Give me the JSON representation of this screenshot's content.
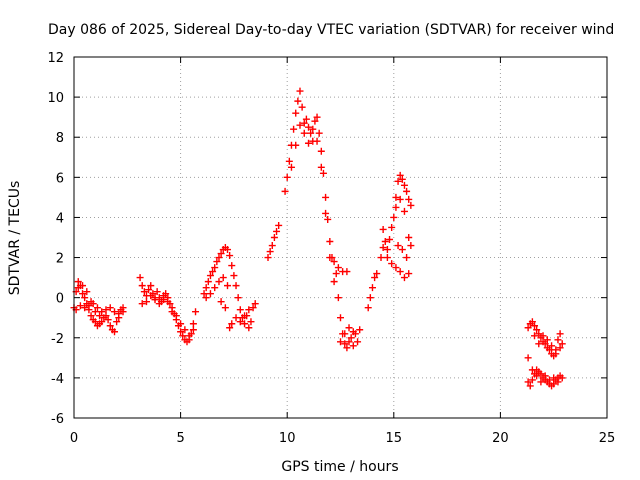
{
  "chart_data": {
    "type": "scatter",
    "title": "Day 086 of 2025, Sidereal Day-to-day VTEC variation (SDTVAR) for receiver wind",
    "xlabel": "GPS time / hours",
    "ylabel": "SDTVAR / TECUs",
    "xlim": [
      0,
      25
    ],
    "ylim": [
      -6,
      12
    ],
    "x_ticks": [
      "0",
      "5",
      "10",
      "15",
      "20",
      "25"
    ],
    "y_ticks": [
      "-6",
      "-4",
      "-2",
      "0",
      "2",
      "4",
      "6",
      "8",
      "10",
      "12"
    ],
    "grid": true,
    "marker": "plus",
    "color": "#ff0000",
    "series": [
      {
        "name": "SDTVAR",
        "points": [
          [
            0.0,
            -0.5
          ],
          [
            0.1,
            0.3
          ],
          [
            0.2,
            0.8
          ],
          [
            0.3,
            0.6
          ],
          [
            0.4,
            0.2
          ],
          [
            0.5,
            0.0
          ],
          [
            0.6,
            -0.3
          ],
          [
            0.7,
            -0.6
          ],
          [
            0.8,
            -0.9
          ],
          [
            0.9,
            -1.1
          ],
          [
            1.0,
            -1.2
          ],
          [
            1.1,
            -1.4
          ],
          [
            1.2,
            -1.3
          ],
          [
            1.3,
            -1.2
          ],
          [
            1.4,
            -1.0
          ],
          [
            1.5,
            -0.9
          ],
          [
            1.6,
            -1.1
          ],
          [
            1.7,
            -1.4
          ],
          [
            1.8,
            -1.6
          ],
          [
            1.9,
            -1.7
          ],
          [
            2.0,
            -1.2
          ],
          [
            2.1,
            -0.8
          ],
          [
            2.2,
            -0.6
          ],
          [
            2.3,
            -0.5
          ],
          [
            0.1,
            -0.6
          ],
          [
            0.3,
            -0.4
          ],
          [
            0.5,
            -0.5
          ],
          [
            0.7,
            -0.4
          ],
          [
            0.9,
            -0.3
          ],
          [
            1.1,
            -0.5
          ],
          [
            1.3,
            -0.7
          ],
          [
            1.5,
            -0.6
          ],
          [
            1.7,
            -0.5
          ],
          [
            1.9,
            -0.7
          ],
          [
            2.1,
            -1.0
          ],
          [
            2.3,
            -0.7
          ],
          [
            0.2,
            0.5
          ],
          [
            0.4,
            0.6
          ],
          [
            0.6,
            0.3
          ],
          [
            0.8,
            -0.2
          ],
          [
            1.0,
            -0.7
          ],
          [
            1.2,
            -0.9
          ],
          [
            3.1,
            1.0
          ],
          [
            3.2,
            0.6
          ],
          [
            3.3,
            0.3
          ],
          [
            3.4,
            0.1
          ],
          [
            3.5,
            0.4
          ],
          [
            3.6,
            0.6
          ],
          [
            3.7,
            0.2
          ],
          [
            3.8,
            0.0
          ],
          [
            3.9,
            0.3
          ],
          [
            4.0,
            0.0
          ],
          [
            4.1,
            -0.2
          ],
          [
            4.2,
            0.1
          ],
          [
            4.3,
            0.2
          ],
          [
            4.4,
            0.0
          ],
          [
            4.5,
            -0.3
          ],
          [
            4.6,
            -0.5
          ],
          [
            4.7,
            -0.8
          ],
          [
            4.8,
            -1.1
          ],
          [
            4.9,
            -1.4
          ],
          [
            5.0,
            -1.7
          ],
          [
            5.1,
            -1.9
          ],
          [
            5.2,
            -2.1
          ],
          [
            5.3,
            -2.2
          ],
          [
            5.4,
            -2.1
          ],
          [
            5.5,
            -1.8
          ],
          [
            5.6,
            -1.3
          ],
          [
            5.7,
            -0.7
          ],
          [
            3.2,
            -0.3
          ],
          [
            3.4,
            -0.2
          ],
          [
            3.6,
            0.1
          ],
          [
            3.8,
            -0.1
          ],
          [
            4.0,
            -0.3
          ],
          [
            4.2,
            -0.1
          ],
          [
            4.4,
            -0.2
          ],
          [
            4.6,
            -0.7
          ],
          [
            4.8,
            -0.9
          ],
          [
            5.0,
            -1.3
          ],
          [
            5.2,
            -1.6
          ],
          [
            5.4,
            -1.9
          ],
          [
            5.6,
            -1.6
          ],
          [
            6.1,
            0.2
          ],
          [
            6.2,
            0.5
          ],
          [
            6.3,
            0.8
          ],
          [
            6.4,
            1.1
          ],
          [
            6.5,
            1.3
          ],
          [
            6.6,
            1.5
          ],
          [
            6.7,
            1.8
          ],
          [
            6.8,
            2.0
          ],
          [
            6.9,
            2.2
          ],
          [
            7.0,
            2.4
          ],
          [
            7.1,
            2.5
          ],
          [
            7.2,
            2.4
          ],
          [
            7.3,
            2.1
          ],
          [
            7.4,
            1.6
          ],
          [
            7.5,
            1.1
          ],
          [
            7.6,
            0.6
          ],
          [
            7.7,
            0.0
          ],
          [
            7.8,
            -0.6
          ],
          [
            7.9,
            -1.0
          ],
          [
            8.0,
            -1.3
          ],
          [
            8.1,
            -0.9
          ],
          [
            8.2,
            -0.6
          ],
          [
            8.3,
            -1.2
          ],
          [
            8.4,
            -0.5
          ],
          [
            8.5,
            -0.3
          ],
          [
            6.2,
            0.0
          ],
          [
            6.4,
            0.2
          ],
          [
            6.6,
            0.5
          ],
          [
            6.8,
            0.8
          ],
          [
            7.0,
            1.0
          ],
          [
            7.2,
            0.6
          ],
          [
            7.3,
            -1.5
          ],
          [
            7.4,
            -1.3
          ],
          [
            7.6,
            -1.0
          ],
          [
            7.8,
            -1.2
          ],
          [
            8.0,
            -0.9
          ],
          [
            8.2,
            -1.5
          ],
          [
            6.9,
            -0.2
          ],
          [
            7.1,
            -0.5
          ],
          [
            9.1,
            2.0
          ],
          [
            9.2,
            2.3
          ],
          [
            9.3,
            2.6
          ],
          [
            9.4,
            3.0
          ],
          [
            9.5,
            3.3
          ],
          [
            9.6,
            3.6
          ],
          [
            9.9,
            5.3
          ],
          [
            10.0,
            6.0
          ],
          [
            10.1,
            6.8
          ],
          [
            10.2,
            7.6
          ],
          [
            10.3,
            8.4
          ],
          [
            10.4,
            9.2
          ],
          [
            10.5,
            9.8
          ],
          [
            10.6,
            10.3
          ],
          [
            10.7,
            9.5
          ],
          [
            10.8,
            8.7
          ],
          [
            10.9,
            8.9
          ],
          [
            11.0,
            8.5
          ],
          [
            11.1,
            8.2
          ],
          [
            11.2,
            8.4
          ],
          [
            11.3,
            8.8
          ],
          [
            11.4,
            9.0
          ],
          [
            11.5,
            8.2
          ],
          [
            11.6,
            7.3
          ],
          [
            11.7,
            6.2
          ],
          [
            11.8,
            5.0
          ],
          [
            11.9,
            3.9
          ],
          [
            12.0,
            2.8
          ],
          [
            12.1,
            2.0
          ],
          [
            12.2,
            1.8
          ],
          [
            12.3,
            1.2
          ],
          [
            12.4,
            0.0
          ],
          [
            12.5,
            -1.0
          ],
          [
            12.6,
            -1.8
          ],
          [
            12.7,
            -2.3
          ],
          [
            12.8,
            -2.5
          ],
          [
            12.9,
            -2.2
          ],
          [
            13.0,
            -2.0
          ],
          [
            13.1,
            -2.4
          ],
          [
            13.2,
            -1.8
          ],
          [
            13.3,
            -2.2
          ],
          [
            13.4,
            -1.6
          ],
          [
            10.2,
            6.5
          ],
          [
            10.4,
            7.6
          ],
          [
            10.6,
            8.6
          ],
          [
            10.8,
            8.2
          ],
          [
            11.0,
            7.7
          ],
          [
            11.2,
            7.8
          ],
          [
            11.4,
            7.8
          ],
          [
            11.6,
            6.5
          ],
          [
            11.8,
            4.2
          ],
          [
            12.0,
            2.0
          ],
          [
            12.2,
            0.8
          ],
          [
            12.5,
            -2.2
          ],
          [
            12.7,
            -1.8
          ],
          [
            12.9,
            -1.5
          ],
          [
            13.1,
            -1.7
          ],
          [
            12.4,
            1.5
          ],
          [
            12.6,
            1.3
          ],
          [
            12.8,
            1.3
          ],
          [
            13.8,
            -0.5
          ],
          [
            13.9,
            0.0
          ],
          [
            14.0,
            0.5
          ],
          [
            14.1,
            1.0
          ],
          [
            14.2,
            1.2
          ],
          [
            14.4,
            2.0
          ],
          [
            14.5,
            2.5
          ],
          [
            14.6,
            2.8
          ],
          [
            14.7,
            2.4
          ],
          [
            14.8,
            2.9
          ],
          [
            14.9,
            3.5
          ],
          [
            15.0,
            4.0
          ],
          [
            15.1,
            5.0
          ],
          [
            15.2,
            5.8
          ],
          [
            15.3,
            6.1
          ],
          [
            15.4,
            5.9
          ],
          [
            15.5,
            5.6
          ],
          [
            15.6,
            5.3
          ],
          [
            15.7,
            4.9
          ],
          [
            15.8,
            4.6
          ],
          [
            14.5,
            3.4
          ],
          [
            14.7,
            2.0
          ],
          [
            14.9,
            1.7
          ],
          [
            15.1,
            1.5
          ],
          [
            15.3,
            1.3
          ],
          [
            15.5,
            1.0
          ],
          [
            15.7,
            1.2
          ],
          [
            15.1,
            4.5
          ],
          [
            15.3,
            4.9
          ],
          [
            15.5,
            4.3
          ],
          [
            15.7,
            3.0
          ],
          [
            15.8,
            2.6
          ],
          [
            15.2,
            2.6
          ],
          [
            15.4,
            2.4
          ],
          [
            15.6,
            2.0
          ],
          [
            21.3,
            -1.5
          ],
          [
            21.4,
            -1.3
          ],
          [
            21.5,
            -1.2
          ],
          [
            21.6,
            -1.4
          ],
          [
            21.7,
            -1.6
          ],
          [
            21.8,
            -1.8
          ],
          [
            21.9,
            -2.0
          ],
          [
            22.0,
            -2.2
          ],
          [
            22.1,
            -2.3
          ],
          [
            22.2,
            -2.5
          ],
          [
            22.3,
            -2.6
          ],
          [
            22.4,
            -2.8
          ],
          [
            22.5,
            -2.9
          ],
          [
            22.6,
            -2.6
          ],
          [
            22.7,
            -2.1
          ],
          [
            22.8,
            -1.8
          ],
          [
            22.9,
            -2.3
          ],
          [
            21.3,
            -3.0
          ],
          [
            21.3,
            -4.2
          ],
          [
            21.4,
            -4.4
          ],
          [
            21.5,
            -4.1
          ],
          [
            21.6,
            -3.8
          ],
          [
            21.7,
            -3.6
          ],
          [
            21.8,
            -3.7
          ],
          [
            21.9,
            -3.8
          ],
          [
            22.0,
            -4.0
          ],
          [
            22.1,
            -4.1
          ],
          [
            22.2,
            -4.2
          ],
          [
            22.3,
            -4.3
          ],
          [
            22.4,
            -4.4
          ],
          [
            22.5,
            -4.3
          ],
          [
            22.6,
            -4.1
          ],
          [
            22.7,
            -4.0
          ],
          [
            22.8,
            -3.9
          ],
          [
            22.9,
            -4.0
          ],
          [
            21.5,
            -3.6
          ],
          [
            21.7,
            -3.9
          ],
          [
            21.9,
            -4.2
          ],
          [
            22.1,
            -3.9
          ],
          [
            22.3,
            -4.1
          ],
          [
            22.5,
            -4.0
          ],
          [
            22.7,
            -4.2
          ],
          [
            21.6,
            -1.9
          ],
          [
            21.8,
            -2.3
          ],
          [
            22.0,
            -1.9
          ],
          [
            22.2,
            -2.1
          ],
          [
            22.4,
            -2.4
          ],
          [
            22.6,
            -2.8
          ],
          [
            22.8,
            -2.5
          ]
        ]
      }
    ]
  }
}
